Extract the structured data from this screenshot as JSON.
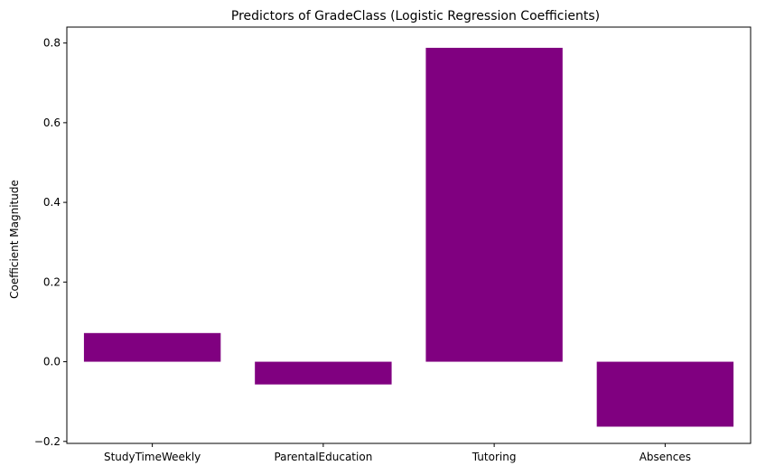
{
  "chart_data": {
    "type": "bar",
    "title": "Predictors of GradeClass (Logistic Regression Coefficients)",
    "xlabel": "",
    "ylabel": "Coefficient Magnitude",
    "categories": [
      "StudyTimeWeekly",
      "ParentalEducation",
      "Tutoring",
      "Absences"
    ],
    "values": [
      0.072,
      -0.057,
      0.788,
      -0.163
    ],
    "ylim": [
      -0.205,
      0.84
    ],
    "yticks": [
      -0.2,
      0.0,
      0.2,
      0.4,
      0.6,
      0.8
    ],
    "ytick_labels": [
      "−0.2",
      "0.0",
      "0.2",
      "0.4",
      "0.6",
      "0.8"
    ],
    "bar_color": "#800080",
    "grid": false,
    "legend": "none"
  }
}
